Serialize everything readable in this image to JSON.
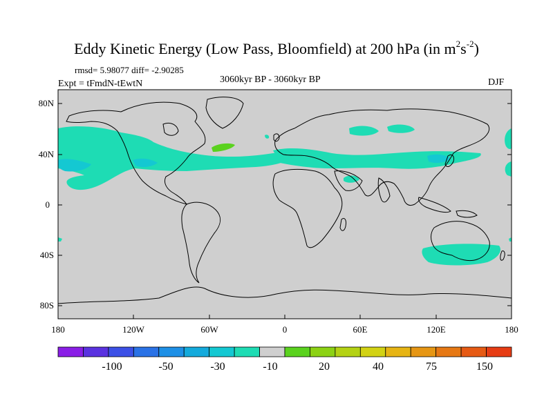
{
  "header": {
    "title_main": "Eddy Kinetic Energy (Low Pass, Bloomfield) at 200 hPa (in m",
    "title_sup1": "2",
    "title_s": "s",
    "title_sup2": "-2",
    "title_close": ")",
    "stats": "rmsd= 5.98077 diff= -2.90285",
    "period": "3060kyr BP - 3060kyr BP",
    "expt": "Expt = tFmdN-tEwtN",
    "season": "DJF"
  },
  "map": {
    "background_color": "#cfcfcf",
    "lat_ticks": [
      "80N",
      "40N",
      "0",
      "40S",
      "80S"
    ],
    "lon_ticks": [
      "180",
      "120W",
      "60W",
      "0",
      "60E",
      "120E",
      "180"
    ]
  },
  "colorbar": {
    "colors": [
      "#8a1ee6",
      "#5a32e0",
      "#3c50e6",
      "#2a72e6",
      "#1e90e6",
      "#14aadc",
      "#14c8d2",
      "#1edcb4",
      "#cfcfcf",
      "#5ad21e",
      "#8cd214",
      "#b4d214",
      "#d2d214",
      "#e6b414",
      "#e69614",
      "#e67814",
      "#e65a14",
      "#e63c14"
    ],
    "labels": [
      "-100",
      "-50",
      "-30",
      "-10",
      "20",
      "40",
      "75",
      "150"
    ]
  }
}
